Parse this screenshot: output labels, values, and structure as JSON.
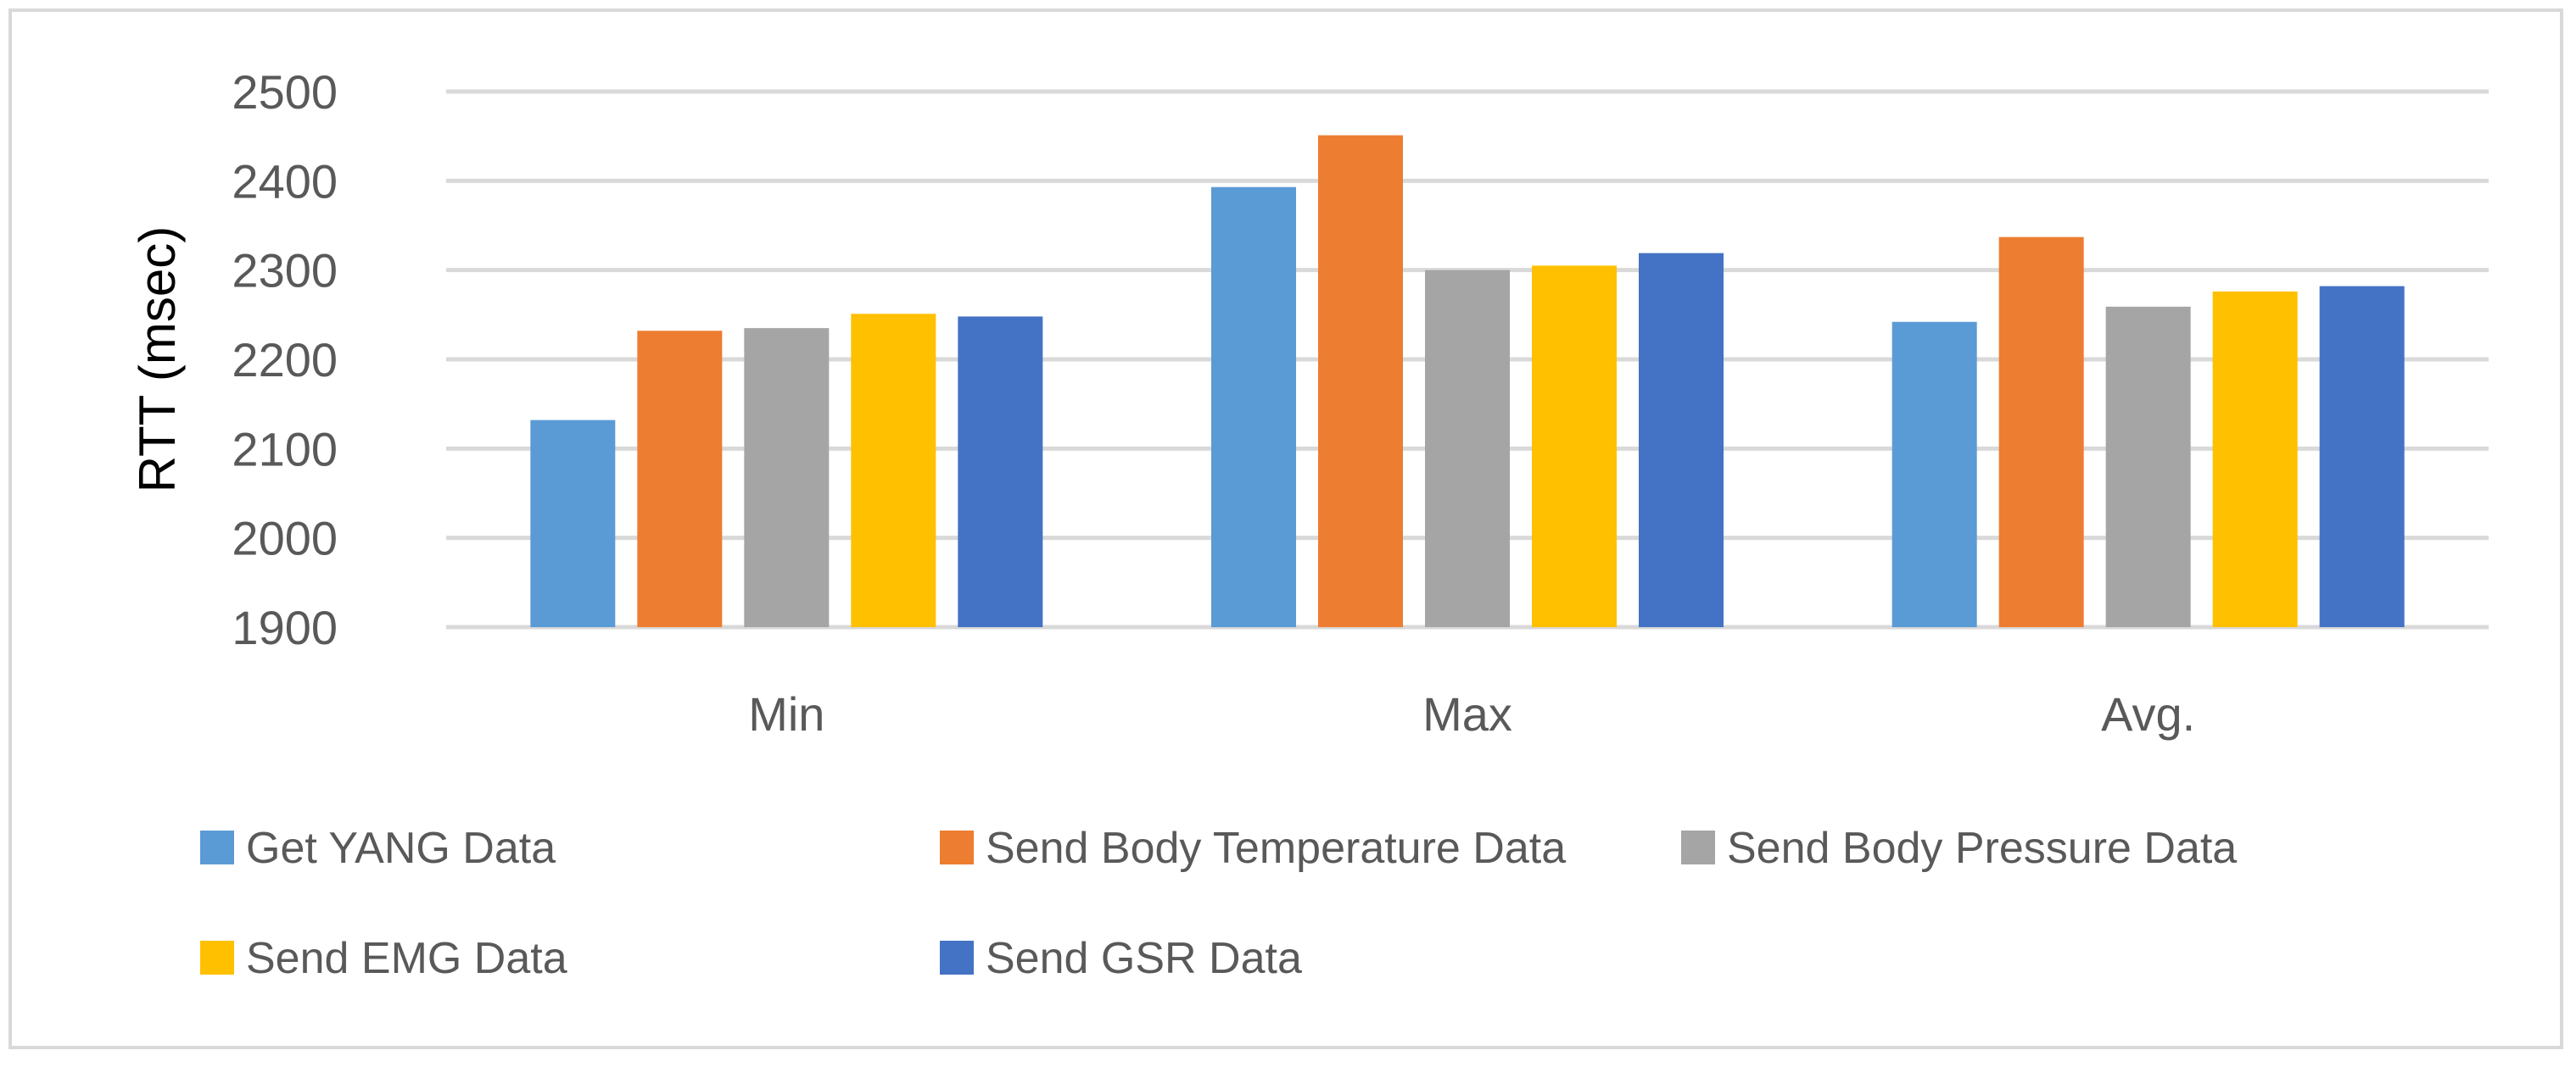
{
  "chart_data": {
    "type": "bar",
    "title": "",
    "xlabel": "",
    "ylabel": "RTT (msec)",
    "ylim": [
      1900,
      2500
    ],
    "yticks": [
      1900,
      2000,
      2100,
      2200,
      2300,
      2400,
      2500
    ],
    "grid": true,
    "legend_position": "bottom",
    "categories": [
      "Min",
      "Max",
      "Avg."
    ],
    "series": [
      {
        "name": "Get YANG Data",
        "color": "#5b9bd5",
        "values": [
          2132,
          2393,
          2242
        ]
      },
      {
        "name": "Send Body Temperature Data",
        "color": "#ed7d31",
        "values": [
          2232,
          2451,
          2337
        ]
      },
      {
        "name": "Send Body Pressure Data",
        "color": "#a5a5a5",
        "values": [
          2235,
          2300,
          2259
        ]
      },
      {
        "name": "Send EMG Data",
        "color": "#ffc000",
        "values": [
          2251,
          2305,
          2276
        ]
      },
      {
        "name": "Send GSR Data",
        "color": "#4472c4",
        "values": [
          2248,
          2319,
          2282
        ]
      }
    ]
  }
}
